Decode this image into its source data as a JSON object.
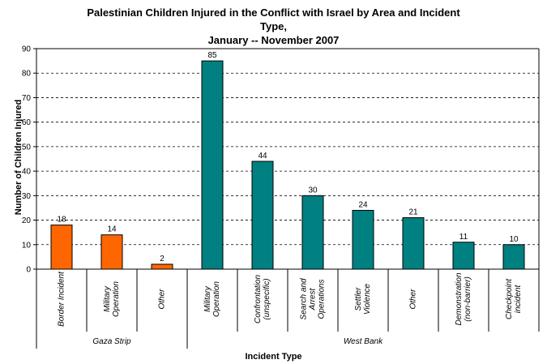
{
  "title": {
    "line1": "Palestinian Children Injured in the Conflict with Israel by Area and Incident",
    "line2": "Type,",
    "line3": "January -- November 2007"
  },
  "chart_data": {
    "type": "bar",
    "ylabel": "Number of Children Injured",
    "xlabel": "Incident Type",
    "ylim": [
      0,
      90
    ],
    "yticks": [
      0,
      10,
      20,
      30,
      40,
      50,
      60,
      70,
      80,
      90
    ],
    "grid": true,
    "categories": [
      {
        "lines": [
          "Border Incident"
        ],
        "group": "Gaza Strip",
        "value": 18,
        "color": "#ff6600"
      },
      {
        "lines": [
          "Military",
          "Operation"
        ],
        "group": "Gaza Strip",
        "value": 14,
        "color": "#ff6600"
      },
      {
        "lines": [
          "Other"
        ],
        "group": "Gaza Strip",
        "value": 2,
        "color": "#ff6600"
      },
      {
        "lines": [
          "Military",
          "Operation"
        ],
        "group": "West Bank",
        "value": 85,
        "color": "#008080"
      },
      {
        "lines": [
          "Confrontation",
          "(unspecific)"
        ],
        "group": "West Bank",
        "value": 44,
        "color": "#008080"
      },
      {
        "lines": [
          "Search and",
          "Arrest",
          "Operations"
        ],
        "group": "West Bank",
        "value": 30,
        "color": "#008080"
      },
      {
        "lines": [
          "Settler",
          "Violence"
        ],
        "group": "West Bank",
        "value": 24,
        "color": "#008080"
      },
      {
        "lines": [
          "Other"
        ],
        "group": "West Bank",
        "value": 21,
        "color": "#008080"
      },
      {
        "lines": [
          "Demonstration",
          "(non-barrier)"
        ],
        "group": "West Bank",
        "value": 11,
        "color": "#008080"
      },
      {
        "lines": [
          "Checkpoint",
          "incident"
        ],
        "group": "West Bank",
        "value": 10,
        "color": "#008080"
      }
    ],
    "groups": [
      {
        "name": "Gaza Strip",
        "start": 0,
        "end": 3
      },
      {
        "name": "West Bank",
        "start": 3,
        "end": 10
      }
    ]
  }
}
